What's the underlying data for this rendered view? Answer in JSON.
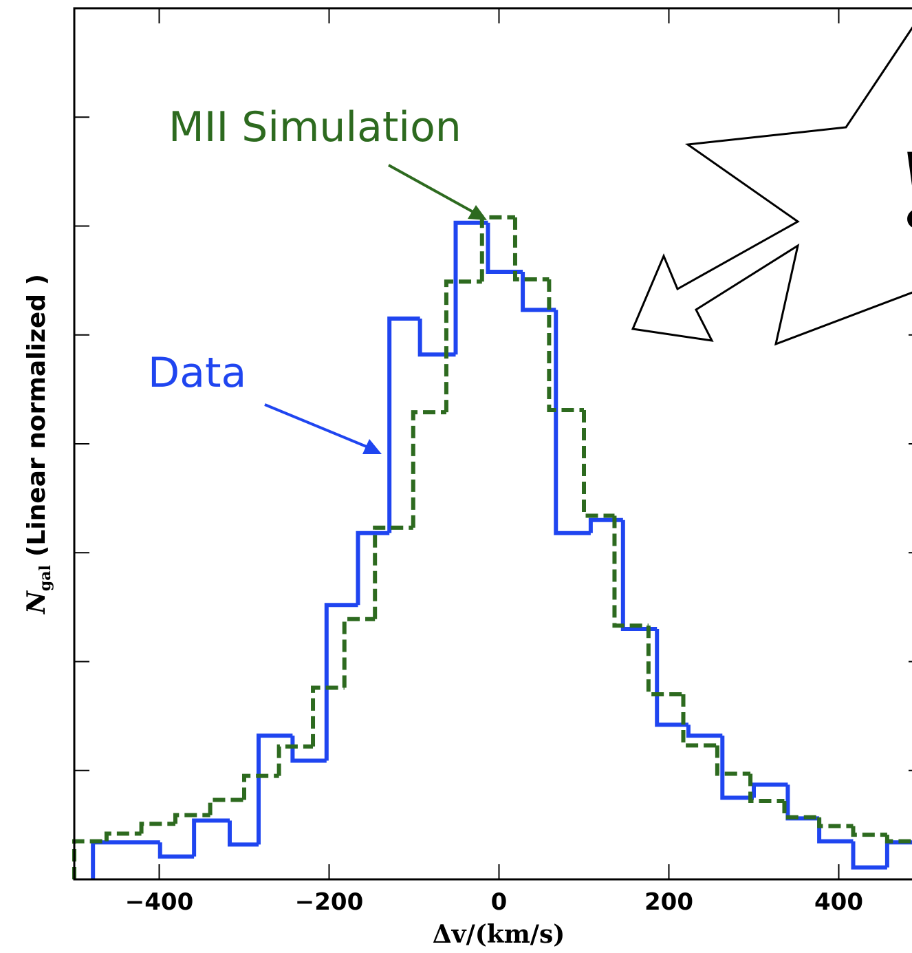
{
  "chart_data": {
    "type": "histogram",
    "xlabel": "Δv/(km/s)",
    "ylabel_symbol": "N",
    "ylabel_subscript": "gal",
    "ylabel": "(Linear normalized )",
    "xlim": [
      -500,
      500
    ],
    "ylim": [
      0,
      8
    ],
    "xticks": [
      {
        "value": -400,
        "label": "−400"
      },
      {
        "value": -200,
        "label": "−200"
      },
      0,
      200,
      400
    ],
    "yticks": [
      1,
      2,
      3,
      4,
      5,
      6,
      7
    ],
    "series": [
      {
        "name": "Data",
        "color": "#1f45f0",
        "dash": false,
        "bins": [
          -478,
          -399,
          -359,
          -317,
          -283,
          -243,
          -203,
          -166,
          -129,
          -93,
          -51,
          -13,
          28,
          67,
          108,
          146,
          186,
          223,
          263,
          300,
          340,
          377,
          417,
          457,
          497
        ],
        "values": [
          0.34,
          0.21,
          0.54,
          0.32,
          1.32,
          1.09,
          2.52,
          3.18,
          5.15,
          4.82,
          6.03,
          5.58,
          5.23,
          3.18,
          3.3,
          2.3,
          1.42,
          1.32,
          0.75,
          0.87,
          0.56,
          0.35,
          0.11,
          0.34
        ]
      },
      {
        "name": "MII Simulation",
        "color": "#2d6a1f",
        "dash": true,
        "bins": [
          -500,
          -462,
          -421,
          -381,
          -340,
          -300,
          -259,
          -219,
          -182,
          -146,
          -101,
          -62,
          -20,
          19,
          59,
          100,
          136,
          176,
          217,
          257,
          296,
          336,
          377,
          417,
          457,
          497
        ],
        "values": [
          0.35,
          0.42,
          0.51,
          0.59,
          0.73,
          0.95,
          1.22,
          1.76,
          2.39,
          3.23,
          4.29,
          5.49,
          6.08,
          5.51,
          4.31,
          3.34,
          2.33,
          1.7,
          1.23,
          0.97,
          0.72,
          0.57,
          0.49,
          0.41,
          0.35
        ]
      }
    ],
    "annotation": "!"
  }
}
